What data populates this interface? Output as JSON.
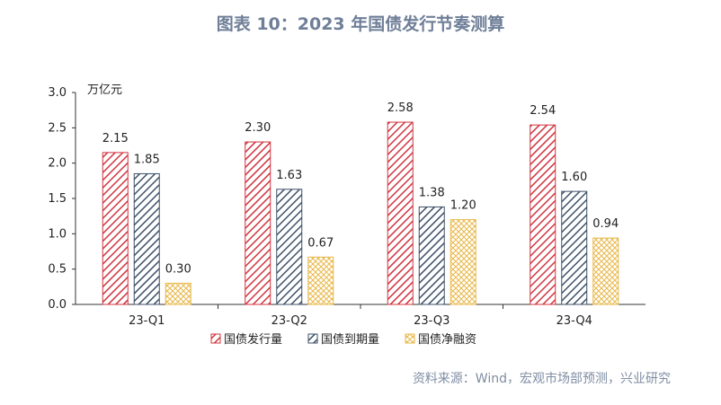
{
  "title": "图表 10：2023 年国债发行节奏测算",
  "source": "资料来源：Wind，宏观市场部预测，兴业研究",
  "colors": {
    "issue": "#d0343f",
    "maturity": "#3d5068",
    "net": "#e8b84a",
    "axis": "#333333"
  },
  "chart_data": {
    "type": "bar",
    "unit": "万亿元",
    "categories": [
      "23-Q1",
      "23-Q2",
      "23-Q3",
      "23-Q4"
    ],
    "ylim": [
      0,
      3.0
    ],
    "yticks": [
      "0.0",
      "0.5",
      "1.0",
      "1.5",
      "2.0",
      "2.5",
      "3.0"
    ],
    "grid": false,
    "legend_position": "bottom",
    "series": [
      {
        "name": "国债发行量",
        "values": [
          2.15,
          2.3,
          2.58,
          2.54
        ],
        "labels": [
          "2.15",
          "2.30",
          "2.58",
          "2.54"
        ]
      },
      {
        "name": "国债到期量",
        "values": [
          1.85,
          1.63,
          1.38,
          1.6
        ],
        "labels": [
          "1.85",
          "1.63",
          "1.38",
          "1.60"
        ]
      },
      {
        "name": "国债净融资",
        "values": [
          0.3,
          0.67,
          1.2,
          0.94
        ],
        "labels": [
          "0.30",
          "0.67",
          "1.20",
          "0.94"
        ]
      }
    ]
  }
}
